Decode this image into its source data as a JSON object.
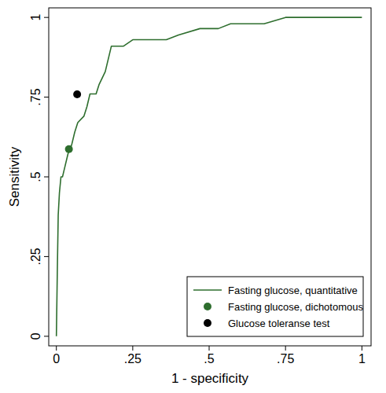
{
  "chart_data": {
    "type": "line",
    "x_label": "1 - specificity",
    "y_label": "Sensitivity",
    "xlim": [
      -0.025,
      1.03
    ],
    "ylim": [
      -0.03,
      1.03
    ],
    "xticks": [
      0,
      {
        "value": 0.25,
        "label": ".25"
      },
      {
        "value": 0.5,
        "label": ".5"
      },
      {
        "value": 0.75,
        "label": ".75"
      },
      1
    ],
    "yticks": [
      0,
      {
        "value": 0.25,
        "label": ".25"
      },
      {
        "value": 0.5,
        "label": ".5"
      },
      {
        "value": 0.75,
        "label": ".75"
      },
      1
    ],
    "grid": false,
    "legend": "bottom-right",
    "series": [
      {
        "name": "Fasting glucose, quantitative",
        "color": "#2e6e2e",
        "type": "line",
        "x": [
          0,
          0.003,
          0.006,
          0.01,
          0.015,
          0.02,
          0.025,
          0.04,
          0.05,
          0.06,
          0.07,
          0.09,
          0.1,
          0.11,
          0.13,
          0.14,
          0.16,
          0.18,
          0.22,
          0.25,
          0.36,
          0.4,
          0.47,
          0.53,
          0.57,
          0.68,
          0.75,
          1
        ],
        "values": [
          0,
          0.2,
          0.38,
          0.45,
          0.5,
          0.5,
          0.52,
          0.58,
          0.6,
          0.64,
          0.67,
          0.69,
          0.72,
          0.76,
          0.76,
          0.79,
          0.83,
          0.91,
          0.91,
          0.93,
          0.93,
          0.945,
          0.965,
          0.965,
          0.98,
          0.98,
          1,
          1
        ]
      },
      {
        "name": "Fasting glucose, dichotomous",
        "color": "#2e6e2e",
        "type": "scatter",
        "marker": "circle",
        "x": [
          0.041
        ],
        "values": [
          0.587
        ]
      },
      {
        "name": "Glucose toleranse test",
        "color": "#000000",
        "type": "scatter",
        "marker": "circle",
        "x": [
          0.068
        ],
        "values": [
          0.759
        ]
      }
    ]
  }
}
